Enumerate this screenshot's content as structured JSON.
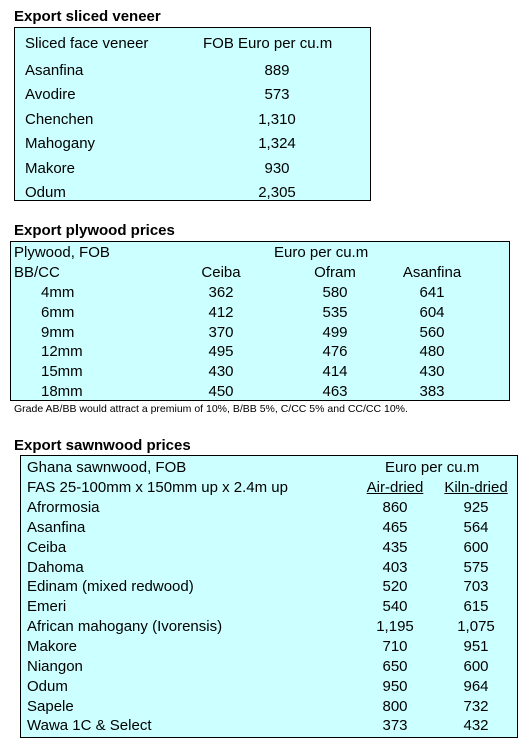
{
  "veneer": {
    "heading": "Export sliced veneer",
    "col1_header": "Sliced face veneer",
    "col2_header": "FOB Euro per cu.m",
    "rows": [
      {
        "name": "Asanfina",
        "price": "889"
      },
      {
        "name": "Avodire",
        "price": "573"
      },
      {
        "name": "Chenchen",
        "price": "1,310"
      },
      {
        "name": "Mahogany",
        "price": "1,324"
      },
      {
        "name": "Makore",
        "price": "930"
      },
      {
        "name": "Odum",
        "price": "2,305"
      }
    ]
  },
  "plywood": {
    "heading": "Export plywood prices",
    "header1_left": "Plywood, FOB",
    "header1_right": "Euro per cu.m",
    "header2_left": "BB/CC",
    "columns": [
      "Ceiba",
      "Ofram",
      "Asanfina"
    ],
    "rows": [
      {
        "size": "4mm",
        "values": [
          "362",
          "580",
          "641"
        ]
      },
      {
        "size": "6mm",
        "values": [
          "412",
          "535",
          "604"
        ]
      },
      {
        "size": "9mm",
        "values": [
          "370",
          "499",
          "560"
        ]
      },
      {
        "size": "12mm",
        "values": [
          "495",
          "476",
          "480"
        ]
      },
      {
        "size": "15mm",
        "values": [
          "430",
          "414",
          "430"
        ]
      },
      {
        "size": "18mm",
        "values": [
          "450",
          "463",
          "383"
        ]
      }
    ],
    "note": "Grade AB/BB would attract a premium of 10%, B/BB 5%, C/CC 5% and CC/CC 10%."
  },
  "sawnwood": {
    "heading": "Export sawnwood prices",
    "header1_left": "Ghana sawnwood, FOB",
    "header1_right": "Euro per cu.m",
    "header2_left": "FAS 25-100mm x 150mm up x 2.4m up",
    "col_air": "Air-dried",
    "col_kiln": "Kiln-dried",
    "rows": [
      {
        "name": "Afrormosia",
        "air": "860",
        "kiln": "925"
      },
      {
        "name": "Asanfina",
        "air": "465",
        "kiln": "564"
      },
      {
        "name": "Ceiba",
        "air": "435",
        "kiln": "600"
      },
      {
        "name": "Dahoma",
        "air": "403",
        "kiln": "575"
      },
      {
        "name": "Edinam (mixed redwood)",
        "air": "520",
        "kiln": "703"
      },
      {
        "name": "Emeri",
        "air": "540",
        "kiln": "615"
      },
      {
        "name": "African mahogany (Ivorensis)",
        "air": "1,195",
        "kiln": "1,075"
      },
      {
        "name": "Makore",
        "air": "710",
        "kiln": "951"
      },
      {
        "name": "Niangon",
        "air": "650",
        "kiln": "600"
      },
      {
        "name": "Odum",
        "air": "950",
        "kiln": "964"
      },
      {
        "name": "Sapele",
        "air": "800",
        "kiln": "732"
      },
      {
        "name": "Wawa 1C & Select",
        "air": "373",
        "kiln": "432"
      }
    ]
  }
}
